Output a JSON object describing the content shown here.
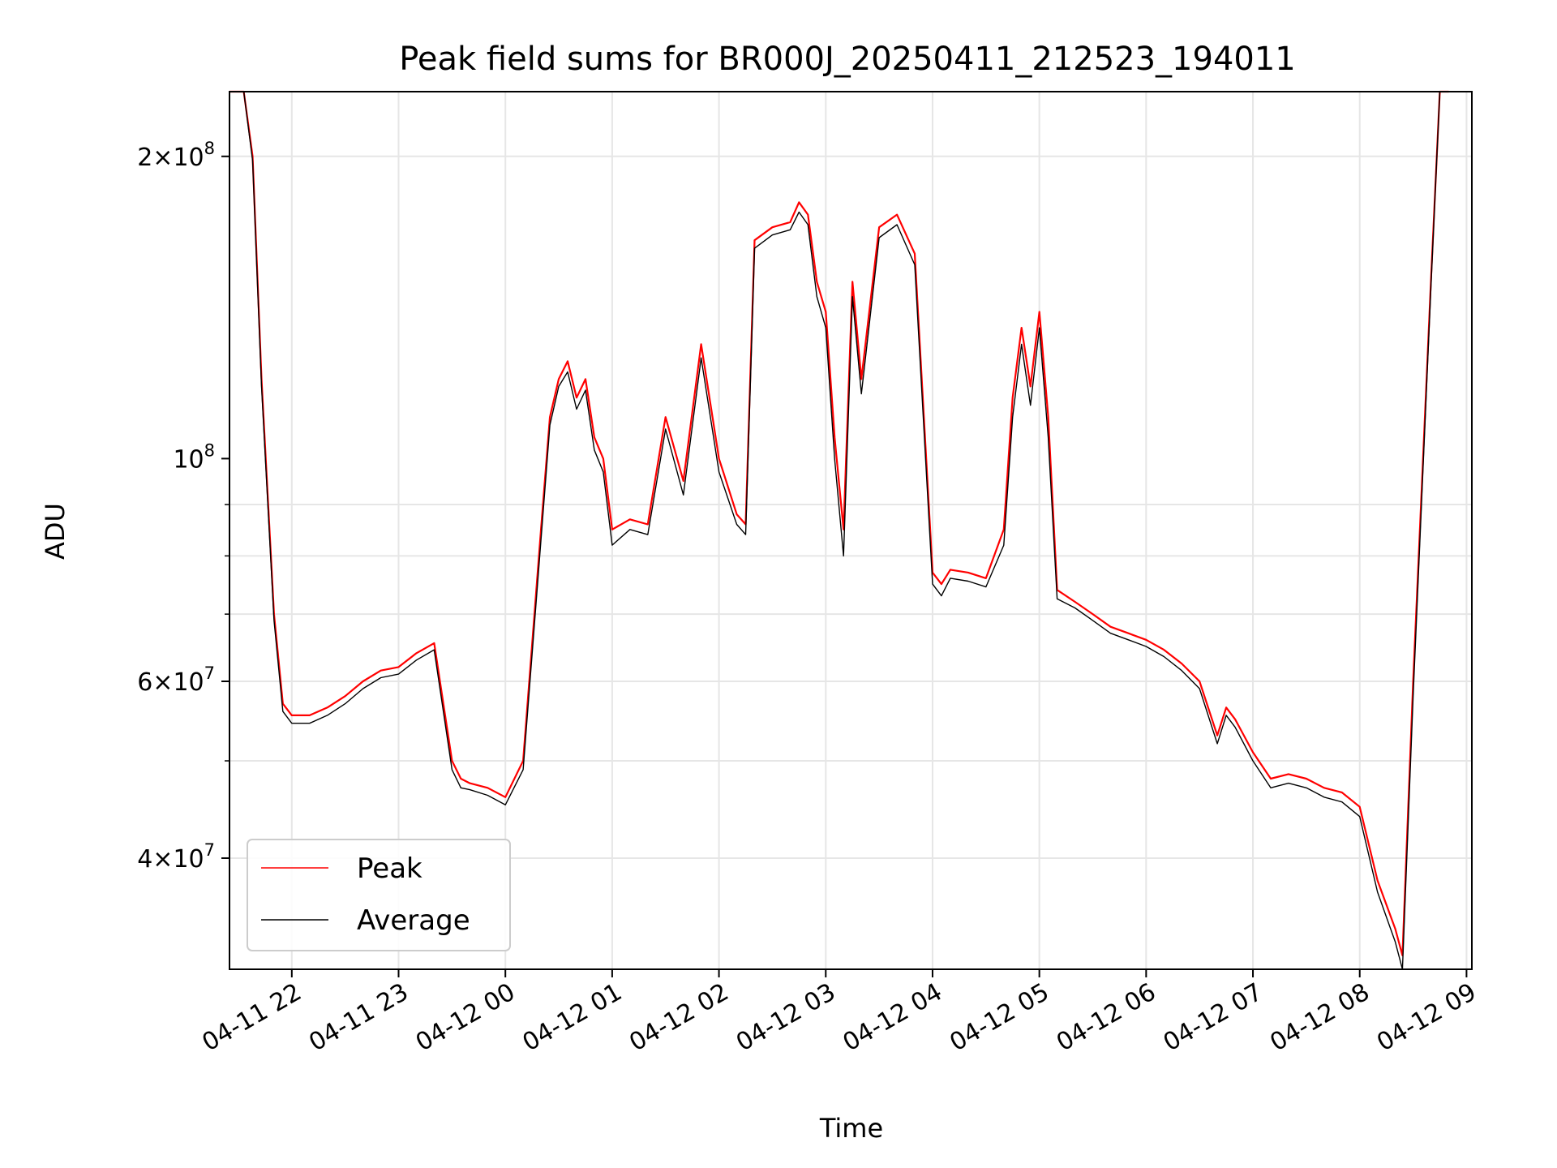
{
  "chart_data": {
    "type": "line",
    "title": "Peak field sums for BR000J_20250411_212523_194011",
    "xlabel": "Time",
    "ylabel": "ADU",
    "y_scale": "log",
    "ylim": [
      31000000,
      232000000
    ],
    "xlim_hours_label_range": [
      "04-11 21:25",
      "04-12 09:03"
    ],
    "grid": true,
    "legend_position": "lower-left",
    "x_tick_labels": [
      "04-11 22",
      "04-11 23",
      "04-12 00",
      "04-12 01",
      "04-12 02",
      "04-12 03",
      "04-12 04",
      "04-12 05",
      "04-12 06",
      "04-12 07",
      "04-12 08",
      "04-12 09"
    ],
    "y_tick_labels": [
      {
        "value": 40000000,
        "mantissa": "4",
        "exponent": "7"
      },
      {
        "value": 60000000,
        "mantissa": "6",
        "exponent": "7"
      },
      {
        "value": 100000000,
        "mantissa": "",
        "exponent": "8"
      },
      {
        "value": 200000000,
        "mantissa": "2",
        "exponent": "8"
      }
    ],
    "series": [
      {
        "name": "Peak",
        "color": "#ff0000",
        "x": [
          "04-11 21:25",
          "04-11 21:33",
          "04-11 21:38",
          "04-11 21:43",
          "04-11 21:50",
          "04-11 21:55",
          "04-11 22:00",
          "04-11 22:10",
          "04-11 22:20",
          "04-11 22:30",
          "04-11 22:40",
          "04-11 22:50",
          "04-11 23:00",
          "04-11 23:10",
          "04-11 23:20",
          "04-11 23:30",
          "04-11 23:35",
          "04-11 23:40",
          "04-11 23:50",
          "04-12 00:00",
          "04-12 00:10",
          "04-12 00:20",
          "04-12 00:25",
          "04-12 00:30",
          "04-12 00:35",
          "04-12 00:40",
          "04-12 00:45",
          "04-12 00:50",
          "04-12 00:55",
          "04-12 01:00",
          "04-12 01:10",
          "04-12 01:20",
          "04-12 01:30",
          "04-12 01:40",
          "04-12 01:50",
          "04-12 02:00",
          "04-12 02:10",
          "04-12 02:15",
          "04-12 02:20",
          "04-12 02:30",
          "04-12 02:40",
          "04-12 02:45",
          "04-12 02:50",
          "04-12 02:55",
          "04-12 03:00",
          "04-12 03:05",
          "04-12 03:10",
          "04-12 03:15",
          "04-12 03:20",
          "04-12 03:30",
          "04-12 03:40",
          "04-12 03:50",
          "04-12 04:00",
          "04-12 04:05",
          "04-12 04:10",
          "04-12 04:20",
          "04-12 04:30",
          "04-12 04:40",
          "04-12 04:45",
          "04-12 04:50",
          "04-12 04:55",
          "04-12 05:00",
          "04-12 05:05",
          "04-12 05:10",
          "04-12 05:20",
          "04-12 05:30",
          "04-12 05:40",
          "04-12 05:50",
          "04-12 06:00",
          "04-12 06:10",
          "04-12 06:20",
          "04-12 06:30",
          "04-12 06:40",
          "04-12 06:45",
          "04-12 06:50",
          "04-12 07:00",
          "04-12 07:10",
          "04-12 07:20",
          "04-12 07:30",
          "04-12 07:40",
          "04-12 07:50",
          "04-12 08:00",
          "04-12 08:10",
          "04-12 08:20",
          "04-12 08:24",
          "04-12 08:30",
          "04-12 08:40",
          "04-12 08:45",
          "04-12 08:50"
        ],
        "y": [
          232000000,
          232000000,
          200000000,
          120000000,
          70000000,
          57000000,
          55500000,
          55500000,
          56500000,
          58000000,
          60000000,
          61500000,
          62000000,
          64000000,
          65500000,
          50000000,
          48000000,
          47500000,
          47000000,
          46000000,
          50000000,
          85000000,
          110000000,
          120000000,
          125000000,
          115000000,
          120000000,
          105000000,
          100000000,
          85000000,
          87000000,
          86000000,
          110000000,
          95000000,
          130000000,
          100000000,
          88000000,
          86000000,
          165000000,
          170000000,
          172000000,
          180000000,
          175000000,
          150000000,
          140000000,
          105000000,
          85000000,
          150000000,
          120000000,
          170000000,
          175000000,
          160000000,
          77000000,
          75000000,
          77500000,
          77000000,
          76000000,
          85000000,
          115000000,
          135000000,
          118000000,
          140000000,
          110000000,
          74000000,
          72000000,
          70000000,
          68000000,
          67000000,
          66000000,
          64500000,
          62500000,
          60000000,
          53000000,
          56500000,
          55000000,
          51000000,
          48000000,
          48500000,
          48000000,
          47000000,
          46500000,
          45000000,
          38000000,
          34000000,
          32000000,
          60000000,
          150000000,
          232000000,
          232000000
        ]
      },
      {
        "name": "Average",
        "color": "#000000",
        "x": [
          "04-11 21:25",
          "04-11 21:33",
          "04-11 21:38",
          "04-11 21:43",
          "04-11 21:50",
          "04-11 21:55",
          "04-11 22:00",
          "04-11 22:10",
          "04-11 22:20",
          "04-11 22:30",
          "04-11 22:40",
          "04-11 22:50",
          "04-11 23:00",
          "04-11 23:10",
          "04-11 23:20",
          "04-11 23:30",
          "04-11 23:35",
          "04-11 23:40",
          "04-11 23:50",
          "04-12 00:00",
          "04-12 00:10",
          "04-12 00:20",
          "04-12 00:25",
          "04-12 00:30",
          "04-12 00:35",
          "04-12 00:40",
          "04-12 00:45",
          "04-12 00:50",
          "04-12 00:55",
          "04-12 01:00",
          "04-12 01:10",
          "04-12 01:20",
          "04-12 01:30",
          "04-12 01:40",
          "04-12 01:50",
          "04-12 02:00",
          "04-12 02:10",
          "04-12 02:15",
          "04-12 02:20",
          "04-12 02:30",
          "04-12 02:40",
          "04-12 02:45",
          "04-12 02:50",
          "04-12 02:55",
          "04-12 03:00",
          "04-12 03:05",
          "04-12 03:10",
          "04-12 03:15",
          "04-12 03:20",
          "04-12 03:30",
          "04-12 03:40",
          "04-12 03:50",
          "04-12 04:00",
          "04-12 04:05",
          "04-12 04:10",
          "04-12 04:20",
          "04-12 04:30",
          "04-12 04:40",
          "04-12 04:45",
          "04-12 04:50",
          "04-12 04:55",
          "04-12 05:00",
          "04-12 05:05",
          "04-12 05:10",
          "04-12 05:20",
          "04-12 05:30",
          "04-12 05:40",
          "04-12 05:50",
          "04-12 06:00",
          "04-12 06:10",
          "04-12 06:20",
          "04-12 06:30",
          "04-12 06:40",
          "04-12 06:45",
          "04-12 06:50",
          "04-12 07:00",
          "04-12 07:10",
          "04-12 07:20",
          "04-12 07:30",
          "04-12 07:40",
          "04-12 07:50",
          "04-12 08:00",
          "04-12 08:10",
          "04-12 08:20",
          "04-12 08:24",
          "04-12 08:30",
          "04-12 08:40",
          "04-12 08:45",
          "04-12 08:50"
        ],
        "y": [
          232000000,
          232000000,
          198000000,
          118000000,
          69000000,
          56000000,
          54500000,
          54500000,
          55500000,
          57000000,
          59000000,
          60500000,
          61000000,
          63000000,
          64500000,
          49000000,
          47000000,
          46800000,
          46200000,
          45200000,
          49000000,
          83000000,
          108000000,
          118000000,
          122000000,
          112000000,
          117000000,
          102000000,
          97000000,
          82000000,
          85000000,
          84000000,
          107000000,
          92000000,
          126000000,
          97000000,
          86000000,
          84000000,
          162000000,
          167000000,
          169000000,
          176000000,
          171000000,
          145000000,
          135000000,
          100000000,
          80000000,
          145000000,
          116000000,
          166000000,
          171000000,
          156000000,
          75000000,
          73000000,
          76000000,
          75500000,
          74500000,
          82000000,
          110000000,
          130000000,
          113000000,
          135000000,
          105000000,
          72500000,
          71000000,
          69000000,
          67000000,
          66000000,
          65000000,
          63500000,
          61500000,
          59000000,
          52000000,
          55500000,
          54000000,
          50000000,
          47000000,
          47500000,
          47000000,
          46000000,
          45500000,
          44000000,
          37000000,
          33000000,
          31000000,
          58000000,
          148000000,
          232000000,
          232000000
        ]
      }
    ]
  }
}
